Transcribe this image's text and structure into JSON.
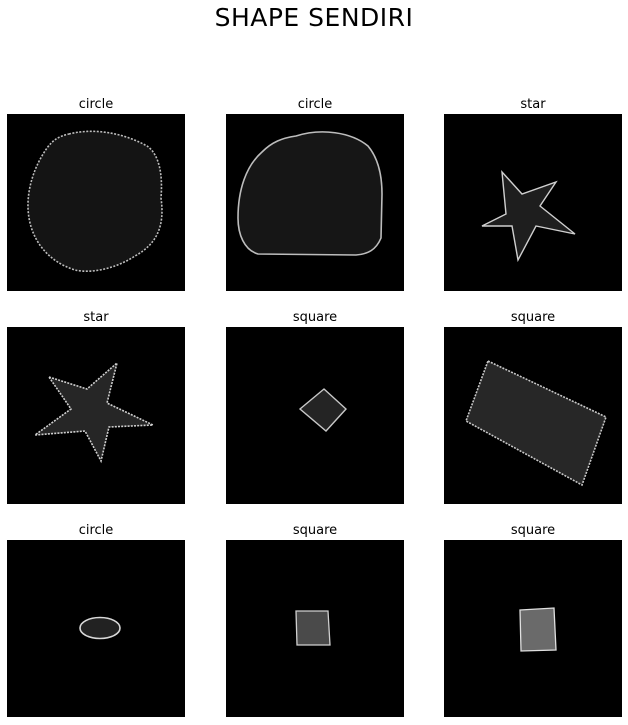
{
  "figure": {
    "title": "SHAPE SENDIRI",
    "panels": [
      {
        "label": "circle",
        "fill": "#141414"
      },
      {
        "label": "circle",
        "fill": "#161616"
      },
      {
        "label": "star",
        "fill": "#1e1e1e"
      },
      {
        "label": "star",
        "fill": "#262626"
      },
      {
        "label": "square",
        "fill": "#242424"
      },
      {
        "label": "square",
        "fill": "#272727"
      },
      {
        "label": "circle",
        "fill": "#222222"
      },
      {
        "label": "square",
        "fill": "#4a4a4a"
      },
      {
        "label": "square",
        "fill": "#6a6a6a"
      }
    ]
  }
}
